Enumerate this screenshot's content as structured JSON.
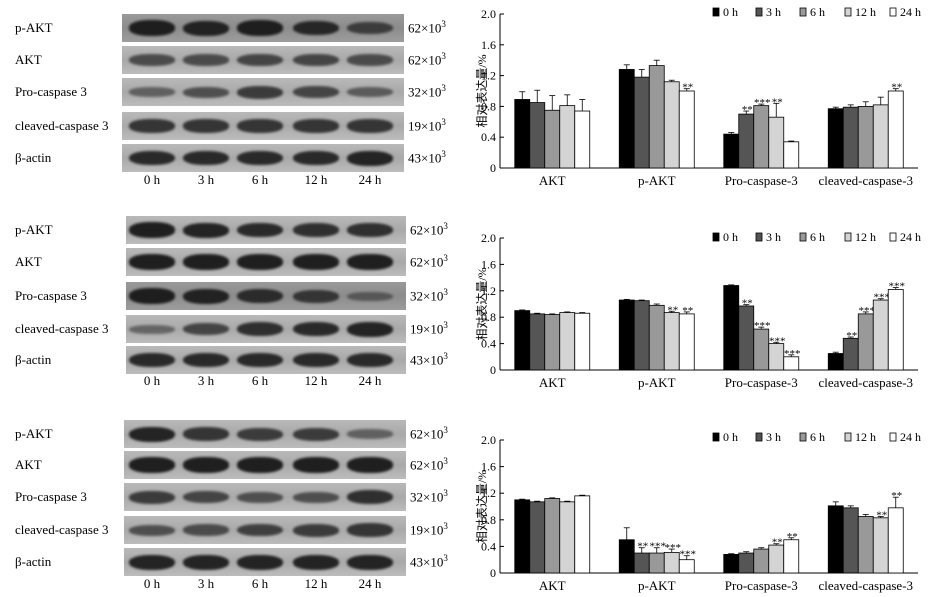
{
  "blots": [
    {
      "rows": [
        {
          "label": "p-AKT",
          "mw": "62×10",
          "exp": "3",
          "bands": [
            0.95,
            0.9,
            0.95,
            0.85,
            0.6
          ],
          "light": false
        },
        {
          "label": "AKT",
          "mw": "62×10",
          "exp": "3",
          "bands": [
            0.55,
            0.55,
            0.6,
            0.6,
            0.55
          ],
          "light": true
        },
        {
          "label": "Pro-caspase 3",
          "mw": "32×10",
          "exp": "3",
          "bands": [
            0.35,
            0.5,
            0.7,
            0.6,
            0.4
          ],
          "light": true
        },
        {
          "label": "cleaved-caspase 3",
          "mw": "19×10",
          "exp": "3",
          "bands": [
            0.75,
            0.75,
            0.75,
            0.75,
            0.75
          ],
          "light": true
        },
        {
          "label": "β-actin",
          "mw": "43×10",
          "exp": "3",
          "bands": [
            0.85,
            0.85,
            0.85,
            0.85,
            0.9
          ],
          "light": true
        }
      ],
      "times": [
        "0 h",
        "3 h",
        "6 h",
        "12 h",
        "24 h"
      ]
    },
    {
      "rows": [
        {
          "label": "p-AKT",
          "mw": "62×10",
          "exp": "3",
          "bands": [
            0.95,
            0.9,
            0.85,
            0.8,
            0.8
          ],
          "light": true
        },
        {
          "label": "AKT",
          "mw": "62×10",
          "exp": "3",
          "bands": [
            0.95,
            0.95,
            0.95,
            0.95,
            0.95
          ],
          "light": true
        },
        {
          "label": "Pro-caspase 3",
          "mw": "32×10",
          "exp": "3",
          "bands": [
            0.95,
            0.9,
            0.8,
            0.7,
            0.3
          ],
          "light": false
        },
        {
          "label": "cleaved-caspase 3",
          "mw": "19×10",
          "exp": "3",
          "bands": [
            0.3,
            0.6,
            0.8,
            0.85,
            0.9
          ],
          "light": true
        },
        {
          "label": "β-actin",
          "mw": "43×10",
          "exp": "3",
          "bands": [
            0.85,
            0.85,
            0.85,
            0.85,
            0.85
          ],
          "light": true
        }
      ],
      "times": [
        "0 h",
        "3 h",
        "6 h",
        "12 h",
        "24 h"
      ]
    },
    {
      "rows": [
        {
          "label": "p-AKT",
          "mw": "62×10",
          "exp": "3",
          "bands": [
            0.9,
            0.75,
            0.7,
            0.7,
            0.35
          ],
          "light": true
        },
        {
          "label": "AKT",
          "mw": "62×10",
          "exp": "3",
          "bands": [
            0.95,
            0.95,
            0.95,
            0.95,
            0.95
          ],
          "light": true
        },
        {
          "label": "Pro-caspase 3",
          "mw": "32×10",
          "exp": "3",
          "bands": [
            0.7,
            0.6,
            0.5,
            0.5,
            0.8
          ],
          "light": true
        },
        {
          "label": "cleaved-caspase 3",
          "mw": "19×10",
          "exp": "3",
          "bands": [
            0.5,
            0.55,
            0.65,
            0.7,
            0.75
          ],
          "light": true
        },
        {
          "label": "β-actin",
          "mw": "43×10",
          "exp": "3",
          "bands": [
            0.9,
            0.9,
            0.9,
            0.9,
            0.9
          ],
          "light": true
        }
      ],
      "times": [
        "0 h",
        "3 h",
        "6 h",
        "12 h",
        "24 h"
      ]
    }
  ],
  "chart_data": [
    {
      "type": "bar",
      "ylabel": "相对表达量/%",
      "ylim": [
        0,
        2.0
      ],
      "yticks": [
        "0",
        "0.4",
        "0.8",
        "1.2",
        "1.6",
        "2.0"
      ],
      "categories": [
        "AKT",
        "p-AKT",
        "Pro-caspase-3",
        "cleaved-caspase-3"
      ],
      "legend": [
        "0 h",
        "3 h",
        "6 h",
        "12 h",
        "24 h"
      ],
      "legend_position": "top-right",
      "series_colors": [
        "#000000",
        "#555555",
        "#999999",
        "#d4d4d4",
        "#ffffff"
      ],
      "values": [
        [
          0.89,
          0.85,
          0.75,
          0.81,
          0.74
        ],
        [
          1.28,
          1.18,
          1.33,
          1.12,
          1.0
        ],
        [
          0.44,
          0.7,
          0.81,
          0.66,
          0.34
        ],
        [
          0.77,
          0.79,
          0.8,
          0.82,
          1.0
        ]
      ],
      "errors": [
        [
          0.1,
          0.16,
          0.19,
          0.14,
          0.15
        ],
        [
          0.06,
          0.1,
          0.07,
          0.02,
          0.03
        ],
        [
          0.02,
          0.04,
          0.02,
          0.18,
          0.01
        ],
        [
          0.02,
          0.03,
          0.06,
          0.1,
          0.03
        ]
      ],
      "significance": [
        [
          "",
          "",
          "",
          "",
          ""
        ],
        [
          "",
          "",
          "",
          "",
          "**"
        ],
        [
          "",
          "**",
          "***",
          "**",
          ""
        ],
        [
          "",
          "",
          "",
          "",
          "**"
        ]
      ]
    },
    {
      "type": "bar",
      "ylabel": "相对表达量/%",
      "ylim": [
        0,
        2.0
      ],
      "yticks": [
        "0",
        "0.4",
        "0.8",
        "1.2",
        "1.6",
        "2.0"
      ],
      "categories": [
        "AKT",
        "p-AKT",
        "Pro-caspase-3",
        "cleaved-caspase-3"
      ],
      "legend": [
        "0 h",
        "3 h",
        "6 h",
        "12 h",
        "24 h"
      ],
      "legend_position": "top-right",
      "series_colors": [
        "#000000",
        "#555555",
        "#999999",
        "#d4d4d4",
        "#ffffff"
      ],
      "values": [
        [
          0.9,
          0.85,
          0.84,
          0.87,
          0.86
        ],
        [
          1.06,
          1.05,
          0.98,
          0.87,
          0.85
        ],
        [
          1.28,
          0.97,
          0.62,
          0.4,
          0.2
        ],
        [
          0.25,
          0.48,
          0.85,
          1.06,
          1.22
        ]
      ],
      "errors": [
        [
          0.01,
          0.01,
          0.01,
          0.01,
          0.01
        ],
        [
          0.01,
          0.01,
          0.02,
          0.02,
          0.03
        ],
        [
          0.01,
          0.02,
          0.03,
          0.02,
          0.03
        ],
        [
          0.02,
          0.02,
          0.03,
          0.02,
          0.03
        ]
      ],
      "significance": [
        [
          "",
          "",
          "",
          "",
          ""
        ],
        [
          "",
          "",
          "",
          "**",
          "**"
        ],
        [
          "",
          "**",
          "***",
          "***",
          "***"
        ],
        [
          "",
          "**",
          "***",
          "***",
          "***"
        ]
      ]
    },
    {
      "type": "bar",
      "ylabel": "相对表达量/%",
      "ylim": [
        0,
        2.0
      ],
      "yticks": [
        "0",
        "0.4",
        "0.8",
        "1.2",
        "1.6",
        "2.0"
      ],
      "categories": [
        "AKT",
        "p-AKT",
        "Pro-caspase-3",
        "cleaved-caspase-3"
      ],
      "legend": [
        "0 h",
        "3 h",
        "6 h",
        "12 h",
        "24 h"
      ],
      "legend_position": "top-right",
      "series_colors": [
        "#000000",
        "#555555",
        "#999999",
        "#d4d4d4",
        "#ffffff"
      ],
      "values": [
        [
          1.1,
          1.07,
          1.12,
          1.07,
          1.16
        ],
        [
          0.5,
          0.3,
          0.3,
          0.31,
          0.2
        ],
        [
          0.28,
          0.3,
          0.36,
          0.42,
          0.5
        ],
        [
          1.01,
          0.98,
          0.85,
          0.83,
          0.98
        ]
      ],
      "errors": [
        [
          0.01,
          0.01,
          0.01,
          0.01,
          0.01
        ],
        [
          0.18,
          0.08,
          0.08,
          0.05,
          0.06
        ],
        [
          0.01,
          0.02,
          0.02,
          0.02,
          0.03
        ],
        [
          0.06,
          0.03,
          0.03,
          0.02,
          0.16
        ]
      ],
      "significance": [
        [
          "",
          "",
          "",
          "",
          ""
        ],
        [
          "",
          "**",
          "***",
          "***",
          "***"
        ],
        [
          "",
          "",
          "",
          "**",
          "**"
        ],
        [
          "",
          "",
          "",
          "**",
          "**"
        ]
      ]
    }
  ]
}
